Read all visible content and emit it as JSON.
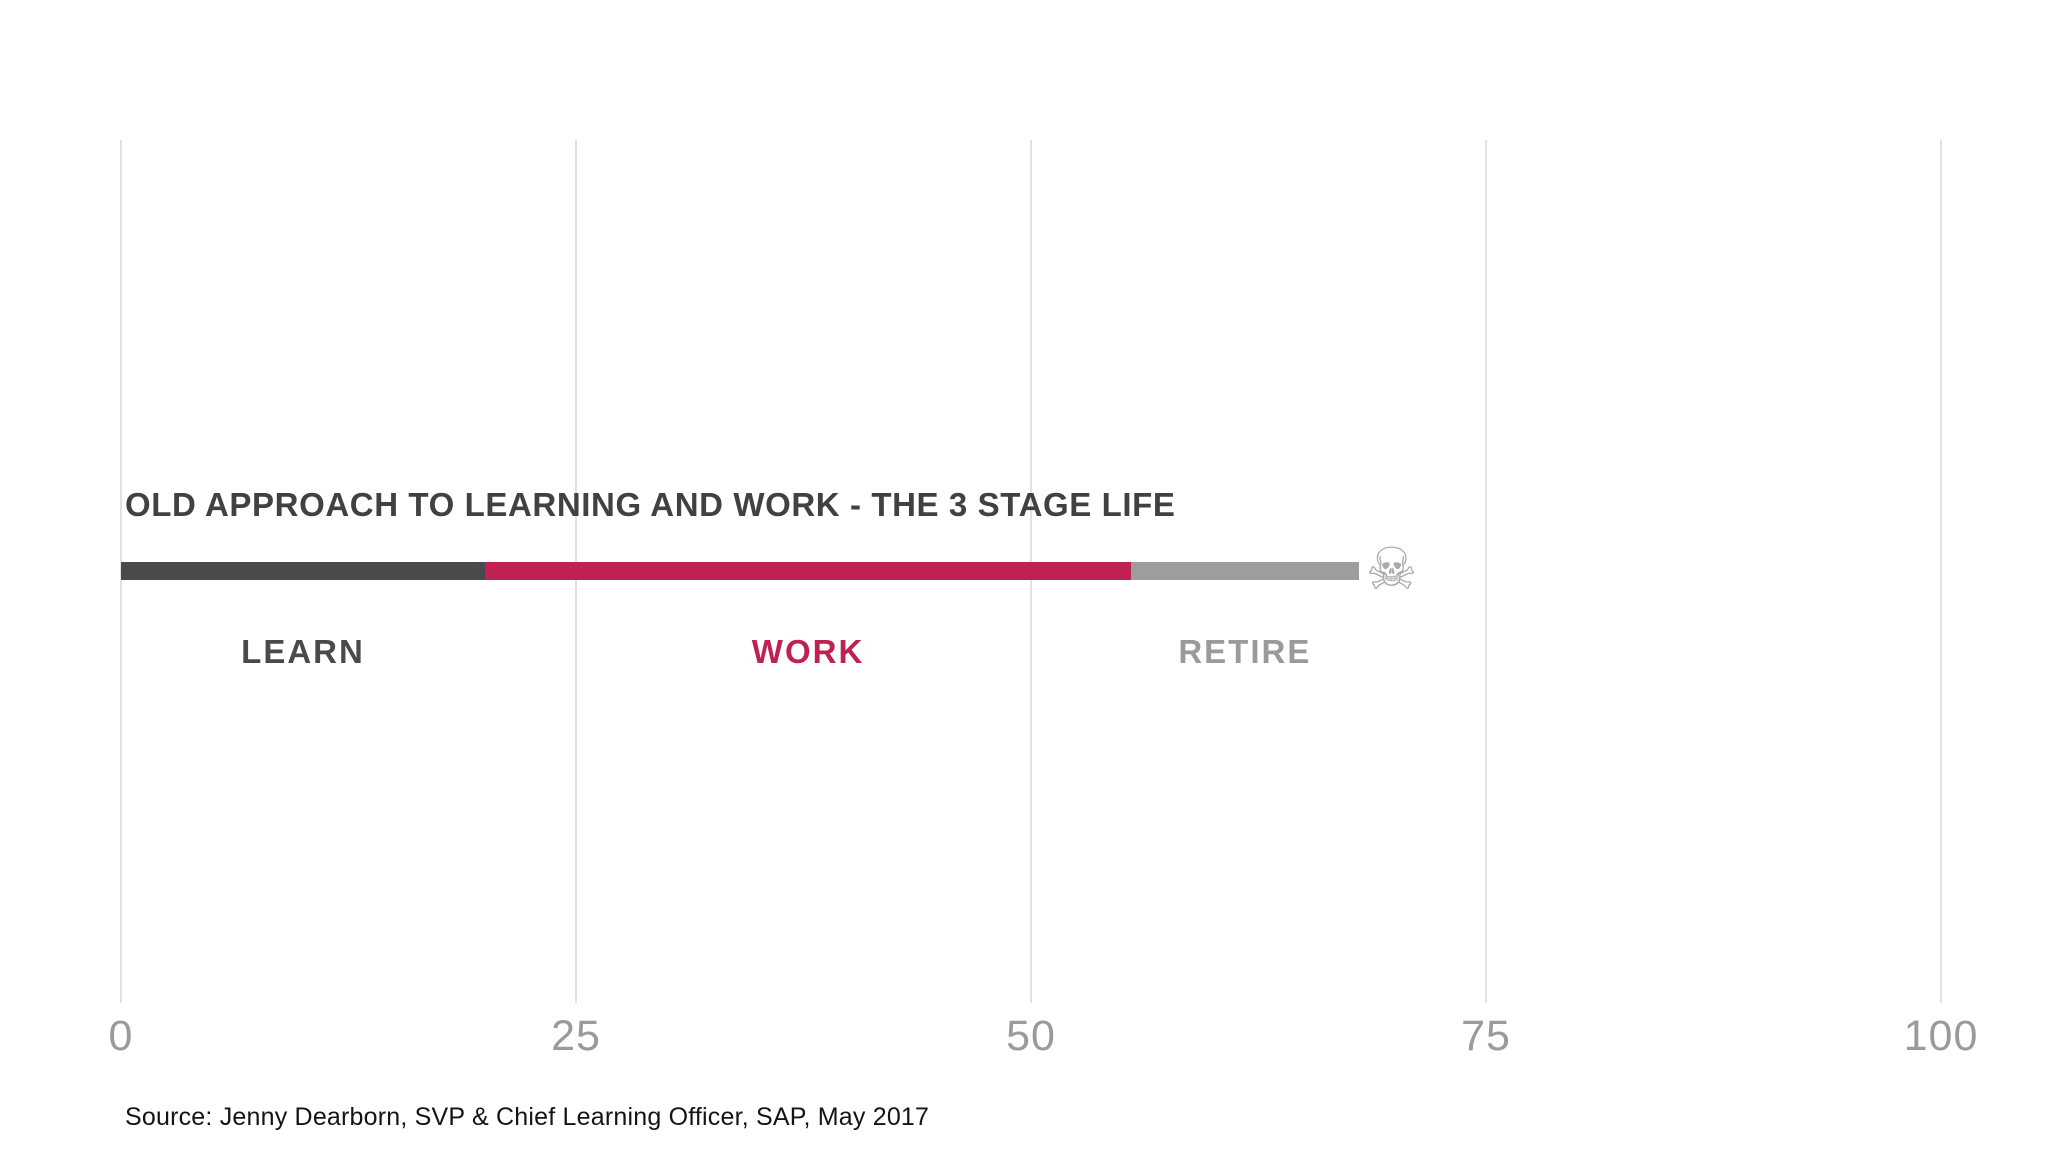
{
  "page": {
    "background": "#ffffff"
  },
  "source": {
    "text": "Source: Jenny Dearborn, SVP & Chief Learning Officer, SAP, May 2017"
  },
  "chart_data": {
    "type": "bar",
    "orientation": "horizontal",
    "title": "OLD APPROACH TO LEARNING AND WORK - THE 3 STAGE LIFE",
    "title_color": "#414144",
    "xlabel": "",
    "ylabel": "",
    "axis": {
      "min": 0,
      "max": 100,
      "ticks": [
        0,
        25,
        50,
        75,
        100
      ],
      "tick_label_color": "#9a9a9d",
      "gridline_color": "#e2e2e4",
      "grid": true
    },
    "segments": [
      {
        "label": "LEARN",
        "start": 0,
        "end": 20,
        "color": "#4a4a4c",
        "label_color": "#4a4a4c"
      },
      {
        "label": "WORK",
        "start": 20,
        "end": 55.5,
        "color": "#bf2151",
        "label_color": "#bf2151"
      },
      {
        "label": "RETIRE",
        "start": 55.5,
        "end": 68,
        "color": "#9d9d9d",
        "label_color": "#9a9a9a"
      }
    ],
    "end_marker": {
      "name": "skull-and-crossbones",
      "glyph": "☠",
      "value": 70,
      "color": "#aaaaaa",
      "meaning": "death / end of life"
    },
    "legend": null,
    "notes": "Single stacked horizontal lifeline bar: learn ages 0-20, work 20-55.5, retire 55.5-68, skull marker near age 70."
  }
}
